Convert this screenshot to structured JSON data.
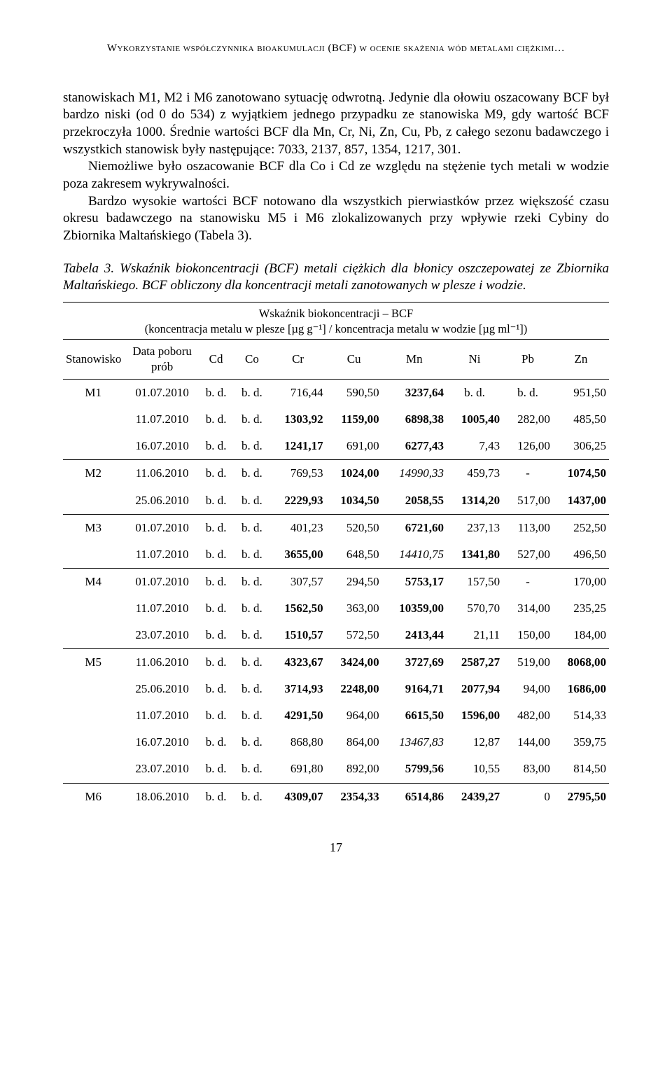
{
  "running_head": "Wykorzystanie współczynnika bioakumulacji (BCF) w ocenie skażenia wód metalami ciężkimi…",
  "paragraphs": {
    "p1": "stanowiskach M1, M2 i M6 zanotowano sytuację odwrotną. Jedynie dla ołowiu oszacowany BCF był bardzo niski (od 0 do 534) z wyjątkiem jednego przypadku ze stanowiska M9, gdy wartość BCF przekroczyła 1000. Średnie wartości BCF dla Mn, Cr, Ni, Zn, Cu, Pb, z całego sezonu badawczego i wszystkich stanowisk były następujące: 7033, 2137, 857, 1354, 1217, 301.",
    "p2": "Niemożliwe było oszacowanie BCF dla Co i Cd ze względu na stężenie tych metali w wodzie poza zakresem wykrywalności.",
    "p3": "Bardzo wysokie wartości BCF notowano dla wszystkich pierwiastków przez większość czasu okresu badawczego na stanowisku M5 i M6 zlokalizowanych przy wpływie rzeki Cybiny do Zbiornika Maltańskiego (Tabela 3)."
  },
  "table_caption": "Tabela 3. Wskaźnik biokoncentracji (BCF) metali ciężkich dla błonicy oszczepowatej ze Zbiornika Maltańskiego. BCF obliczony dla koncentracji metali zanotowanych w plesze i wodzie.",
  "table": {
    "super_header_l1": "Wskaźnik biokoncentracji – BCF",
    "super_header_l2": "(koncentracja metalu w plesze [µg g⁻¹] / koncentracja metalu w wodzie [µg ml⁻¹])",
    "col_stanowisko": "Stanowisko",
    "col_data": "Data poboru prób",
    "cols": [
      "Cd",
      "Co",
      "Cr",
      "Cu",
      "Mn",
      "Ni",
      "Pb",
      "Zn"
    ],
    "bd": "b. d.",
    "dash": "-",
    "groups": [
      {
        "station": "M1",
        "rows": [
          {
            "date": "01.07.2010",
            "cd": "b. d.",
            "co": "b. d.",
            "cr": {
              "v": "716,44"
            },
            "cu": {
              "v": "590,50"
            },
            "mn": {
              "v": "3237,64",
              "b": true
            },
            "ni": {
              "v": "b. d.",
              "bd": true
            },
            "pb": {
              "v": "b. d.",
              "bd": true
            },
            "zn": {
              "v": "951,50"
            }
          },
          {
            "date": "11.07.2010",
            "cd": "b. d.",
            "co": "b. d.",
            "cr": {
              "v": "1303,92",
              "b": true
            },
            "cu": {
              "v": "1159,00",
              "b": true
            },
            "mn": {
              "v": "6898,38",
              "b": true
            },
            "ni": {
              "v": "1005,40",
              "b": true
            },
            "pb": {
              "v": "282,00"
            },
            "zn": {
              "v": "485,50"
            }
          },
          {
            "date": "16.07.2010",
            "cd": "b. d.",
            "co": "b. d.",
            "cr": {
              "v": "1241,17",
              "b": true
            },
            "cu": {
              "v": "691,00"
            },
            "mn": {
              "v": "6277,43",
              "b": true
            },
            "ni": {
              "v": "7,43"
            },
            "pb": {
              "v": "126,00"
            },
            "zn": {
              "v": "306,25"
            }
          }
        ]
      },
      {
        "station": "M2",
        "rows": [
          {
            "date": "11.06.2010",
            "cd": "b. d.",
            "co": "b. d.",
            "cr": {
              "v": "769,53"
            },
            "cu": {
              "v": "1024,00",
              "b": true
            },
            "mn": {
              "v": "14990,33",
              "i": true
            },
            "ni": {
              "v": "459,73"
            },
            "pb": {
              "v": "-",
              "dash": true
            },
            "zn": {
              "v": "1074,50",
              "b": true
            }
          },
          {
            "date": "25.06.2010",
            "cd": "b. d.",
            "co": "b. d.",
            "cr": {
              "v": "2229,93",
              "b": true
            },
            "cu": {
              "v": "1034,50",
              "b": true
            },
            "mn": {
              "v": "2058,55",
              "b": true
            },
            "ni": {
              "v": "1314,20",
              "b": true
            },
            "pb": {
              "v": "517,00"
            },
            "zn": {
              "v": "1437,00",
              "b": true
            }
          }
        ]
      },
      {
        "station": "M3",
        "rows": [
          {
            "date": "01.07.2010",
            "cd": "b. d.",
            "co": "b. d.",
            "cr": {
              "v": "401,23"
            },
            "cu": {
              "v": "520,50"
            },
            "mn": {
              "v": "6721,60",
              "b": true
            },
            "ni": {
              "v": "237,13"
            },
            "pb": {
              "v": "113,00"
            },
            "zn": {
              "v": "252,50"
            }
          },
          {
            "date": "11.07.2010",
            "cd": "b. d.",
            "co": "b. d.",
            "cr": {
              "v": "3655,00",
              "b": true
            },
            "cu": {
              "v": "648,50"
            },
            "mn": {
              "v": "14410,75",
              "i": true
            },
            "ni": {
              "v": "1341,80",
              "b": true
            },
            "pb": {
              "v": "527,00"
            },
            "zn": {
              "v": "496,50"
            }
          }
        ]
      },
      {
        "station": "M4",
        "rows": [
          {
            "date": "01.07.2010",
            "cd": "b. d.",
            "co": "b. d.",
            "cr": {
              "v": "307,57"
            },
            "cu": {
              "v": "294,50"
            },
            "mn": {
              "v": "5753,17",
              "b": true
            },
            "ni": {
              "v": "157,50"
            },
            "pb": {
              "v": "-",
              "dash": true
            },
            "zn": {
              "v": "170,00"
            }
          },
          {
            "date": "11.07.2010",
            "cd": "b. d.",
            "co": "b. d.",
            "cr": {
              "v": "1562,50",
              "b": true
            },
            "cu": {
              "v": "363,00"
            },
            "mn": {
              "v": "10359,00",
              "b": true
            },
            "ni": {
              "v": "570,70"
            },
            "pb": {
              "v": "314,00"
            },
            "zn": {
              "v": "235,25"
            }
          },
          {
            "date": "23.07.2010",
            "cd": "b. d.",
            "co": "b. d.",
            "cr": {
              "v": "1510,57",
              "b": true
            },
            "cu": {
              "v": "572,50"
            },
            "mn": {
              "v": "2413,44",
              "b": true
            },
            "ni": {
              "v": "21,11"
            },
            "pb": {
              "v": "150,00"
            },
            "zn": {
              "v": "184,00"
            }
          }
        ]
      },
      {
        "station": "M5",
        "rows": [
          {
            "date": "11.06.2010",
            "cd": "b. d.",
            "co": "b. d.",
            "cr": {
              "v": "4323,67",
              "b": true
            },
            "cu": {
              "v": "3424,00",
              "b": true
            },
            "mn": {
              "v": "3727,69",
              "b": true
            },
            "ni": {
              "v": "2587,27",
              "b": true
            },
            "pb": {
              "v": "519,00"
            },
            "zn": {
              "v": "8068,00",
              "b": true
            }
          },
          {
            "date": "25.06.2010",
            "cd": "b. d.",
            "co": "b. d.",
            "cr": {
              "v": "3714,93",
              "b": true
            },
            "cu": {
              "v": "2248,00",
              "b": true
            },
            "mn": {
              "v": "9164,71",
              "b": true
            },
            "ni": {
              "v": "2077,94",
              "b": true
            },
            "pb": {
              "v": "94,00"
            },
            "zn": {
              "v": "1686,00",
              "b": true
            }
          },
          {
            "date": "11.07.2010",
            "cd": "b. d.",
            "co": "b. d.",
            "cr": {
              "v": "4291,50",
              "b": true
            },
            "cu": {
              "v": "964,00"
            },
            "mn": {
              "v": "6615,50",
              "b": true
            },
            "ni": {
              "v": "1596,00",
              "b": true
            },
            "pb": {
              "v": "482,00"
            },
            "zn": {
              "v": "514,33"
            }
          },
          {
            "date": "16.07.2010",
            "cd": "b. d.",
            "co": "b. d.",
            "cr": {
              "v": "868,80"
            },
            "cu": {
              "v": "864,00"
            },
            "mn": {
              "v": "13467,83",
              "i": true
            },
            "ni": {
              "v": "12,87"
            },
            "pb": {
              "v": "144,00"
            },
            "zn": {
              "v": "359,75"
            }
          },
          {
            "date": "23.07.2010",
            "cd": "b. d.",
            "co": "b. d.",
            "cr": {
              "v": "691,80"
            },
            "cu": {
              "v": "892,00"
            },
            "mn": {
              "v": "5799,56",
              "b": true
            },
            "ni": {
              "v": "10,55"
            },
            "pb": {
              "v": "83,00"
            },
            "zn": {
              "v": "814,50"
            }
          }
        ]
      },
      {
        "station": "M6",
        "rows": [
          {
            "date": "18.06.2010",
            "cd": "b. d.",
            "co": "b. d.",
            "cr": {
              "v": "4309,07",
              "b": true
            },
            "cu": {
              "v": "2354,33",
              "b": true
            },
            "mn": {
              "v": "6514,86",
              "b": true
            },
            "ni": {
              "v": "2439,27",
              "b": true
            },
            "pb": {
              "v": "0"
            },
            "zn": {
              "v": "2795,50",
              "b": true
            }
          }
        ]
      }
    ]
  },
  "page_number": "17"
}
